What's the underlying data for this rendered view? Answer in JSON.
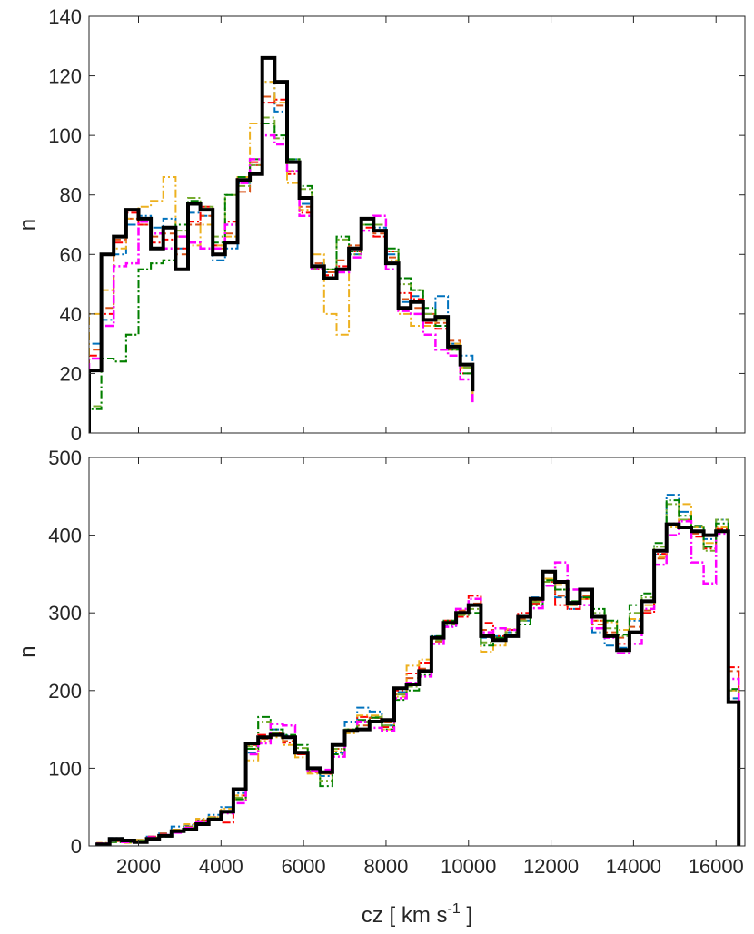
{
  "chart_data": [
    {
      "type": "line",
      "subtype": "stairs-histogram",
      "title": "",
      "xlabel": "",
      "ylabel": "n",
      "xlim": [
        800,
        16700
      ],
      "ylim": [
        0,
        140
      ],
      "xticks": [
        2000,
        4000,
        6000,
        8000,
        10000,
        12000,
        14000,
        16000
      ],
      "xtick_labels_shown": false,
      "yticks": [
        0,
        20,
        40,
        60,
        80,
        100,
        120,
        140
      ],
      "grid": false,
      "legend": "none",
      "bin_edges": [
        800,
        1100,
        1400,
        1700,
        2000,
        2300,
        2600,
        2900,
        3200,
        3500,
        3800,
        4100,
        4400,
        4700,
        5000,
        5300,
        5600,
        5900,
        6200,
        6500,
        6800,
        7100,
        7400,
        7700,
        8000,
        8300,
        8600,
        8900,
        9200,
        9500,
        9800,
        10100
      ],
      "series": [
        {
          "color": "#000000",
          "style": "solid",
          "width": 4,
          "values": [
            21,
            60,
            66,
            75,
            72,
            62,
            69,
            55,
            77,
            75,
            60,
            64,
            85,
            87,
            126,
            118,
            91,
            79,
            56,
            52,
            55,
            62,
            72,
            68,
            57,
            42,
            44,
            38,
            39,
            29,
            23,
            14
          ]
        },
        {
          "color": "#0072BD",
          "style": "dashdot",
          "width": 2,
          "values": [
            30,
            38,
            60,
            70,
            73,
            69,
            72,
            62,
            74,
            73,
            58,
            62,
            84,
            90,
            118,
            108,
            92,
            77,
            57,
            54,
            55,
            60,
            70,
            69,
            60,
            44,
            46,
            40,
            46,
            30,
            26,
            16
          ]
        },
        {
          "color": "#D95319",
          "style": "dashed",
          "width": 2,
          "values": [
            28,
            42,
            65,
            72,
            70,
            66,
            67,
            60,
            70,
            73,
            62,
            67,
            81,
            90,
            113,
            110,
            88,
            76,
            57,
            54,
            58,
            63,
            70,
            67,
            59,
            45,
            42,
            40,
            37,
            31,
            22,
            12
          ]
        },
        {
          "color": "#FF0000",
          "style": "dashdot",
          "width": 2,
          "values": [
            26,
            40,
            64,
            74,
            70,
            64,
            65,
            62,
            71,
            76,
            63,
            71,
            86,
            91,
            111,
            112,
            87,
            74,
            55,
            53,
            56,
            61,
            69,
            66,
            61,
            47,
            45,
            37,
            35,
            28,
            20,
            11
          ]
        },
        {
          "color": "#EDB120",
          "style": "dashdot",
          "width": 2,
          "values": [
            40,
            48,
            62,
            72,
            76,
            78,
            86,
            66,
            63,
            70,
            63,
            66,
            86,
            104,
            118,
            111,
            84,
            75,
            60,
            40,
            33,
            62,
            70,
            68,
            58,
            40,
            36,
            36,
            38,
            30,
            22,
            13
          ]
        },
        {
          "color": "#77AC30",
          "style": "dashdot",
          "width": 2,
          "values": [
            9,
            25,
            24,
            33,
            55,
            57,
            58,
            68,
            79,
            76,
            66,
            80,
            83,
            90,
            106,
            99,
            92,
            82,
            55,
            55,
            65,
            60,
            70,
            70,
            61,
            50,
            48,
            40,
            38,
            28,
            22,
            16
          ]
        },
        {
          "color": "#007F00",
          "style": "dashdot",
          "width": 2,
          "values": [
            8,
            25,
            24,
            33,
            55,
            57,
            58,
            70,
            78,
            75,
            64,
            80,
            86,
            92,
            104,
            100,
            92,
            83,
            56,
            55,
            66,
            61,
            70,
            68,
            62,
            52,
            48,
            42,
            36,
            28,
            20,
            14
          ]
        },
        {
          "color": "#FF00FF",
          "style": "dashdot",
          "width": 2.5,
          "values": [
            25,
            36,
            56,
            57,
            71,
            67,
            62,
            66,
            64,
            62,
            62,
            70,
            84,
            92,
            100,
            97,
            88,
            73,
            55,
            52,
            54,
            59,
            68,
            73,
            55,
            41,
            40,
            33,
            28,
            26,
            18,
            10
          ]
        }
      ]
    },
    {
      "type": "line",
      "subtype": "stairs-histogram",
      "title": "",
      "xlabel": "cz   [ km s-1 ]",
      "ylabel": "n",
      "xlim": [
        800,
        16700
      ],
      "ylim": [
        0,
        500
      ],
      "xticks": [
        2000,
        4000,
        6000,
        8000,
        10000,
        12000,
        14000,
        16000
      ],
      "yticks": [
        0,
        100,
        200,
        300,
        400,
        500
      ],
      "grid": false,
      "legend": "none",
      "bin_edges": [
        1000,
        1300,
        1600,
        1900,
        2200,
        2500,
        2800,
        3100,
        3400,
        3700,
        4000,
        4300,
        4600,
        4900,
        5200,
        5500,
        5800,
        6100,
        6400,
        6700,
        7000,
        7300,
        7600,
        7900,
        8200,
        8500,
        8800,
        9100,
        9400,
        9700,
        10000,
        10300,
        10600,
        10900,
        11200,
        11500,
        11800,
        12100,
        12400,
        12700,
        13000,
        13300,
        13600,
        13900,
        14200,
        14500,
        14800,
        15100,
        15400,
        15700,
        16000,
        16300,
        16550
      ],
      "series": [
        {
          "color": "#000000",
          "style": "solid",
          "width": 4,
          "values": [
            2,
            9,
            7,
            5,
            9,
            13,
            19,
            21,
            28,
            34,
            44,
            73,
            132,
            140,
            143,
            140,
            120,
            100,
            95,
            130,
            148,
            150,
            160,
            162,
            203,
            208,
            225,
            268,
            287,
            300,
            310,
            270,
            265,
            270,
            295,
            318,
            353,
            340,
            313,
            330,
            295,
            270,
            252,
            275,
            315,
            380,
            414,
            410,
            405,
            400,
            405,
            185
          ]
        },
        {
          "color": "#0072BD",
          "style": "dashdot",
          "width": 2,
          "values": [
            3,
            10,
            8,
            8,
            12,
            16,
            25,
            27,
            34,
            40,
            50,
            68,
            120,
            140,
            150,
            142,
            121,
            99,
            90,
            120,
            160,
            178,
            173,
            155,
            198,
            210,
            225,
            270,
            283,
            300,
            310,
            268,
            270,
            275,
            290,
            320,
            335,
            320,
            305,
            320,
            275,
            258,
            255,
            290,
            315,
            375,
            452,
            430,
            410,
            395,
            420,
            190
          ]
        },
        {
          "color": "#D95319",
          "style": "dashed",
          "width": 2,
          "values": [
            2,
            6,
            5,
            6,
            10,
            16,
            20,
            25,
            33,
            37,
            43,
            60,
            125,
            138,
            145,
            135,
            118,
            95,
            93,
            125,
            150,
            155,
            165,
            160,
            195,
            216,
            228,
            263,
            289,
            303,
            312,
            278,
            268,
            272,
            292,
            315,
            352,
            322,
            310,
            322,
            285,
            275,
            268,
            282,
            303,
            370,
            414,
            420,
            402,
            399,
            408,
            225
          ]
        },
        {
          "color": "#FF0000",
          "style": "dashdot",
          "width": 2,
          "values": [
            2,
            7,
            6,
            6,
            12,
            14,
            19,
            22,
            32,
            33,
            30,
            65,
            130,
            143,
            145,
            133,
            118,
            98,
            93,
            130,
            148,
            166,
            165,
            153,
            200,
            222,
            236,
            268,
            290,
            295,
            322,
            287,
            270,
            278,
            300,
            312,
            340,
            310,
            305,
            318,
            290,
            270,
            260,
            275,
            300,
            376,
            415,
            410,
            398,
            383,
            408,
            230
          ]
        },
        {
          "color": "#EDB120",
          "style": "dashdot",
          "width": 2,
          "values": [
            4,
            5,
            4,
            8,
            11,
            14,
            21,
            28,
            35,
            37,
            48,
            65,
            110,
            135,
            140,
            130,
            114,
            93,
            93,
            122,
            145,
            168,
            168,
            150,
            192,
            232,
            240,
            266,
            287,
            298,
            310,
            250,
            258,
            279,
            294,
            315,
            344,
            336,
            312,
            318,
            290,
            288,
            278,
            292,
            310,
            372,
            410,
            440,
            410,
            390,
            410,
            200
          ]
        },
        {
          "color": "#77AC30",
          "style": "dashdot",
          "width": 2,
          "values": [
            2,
            6,
            6,
            7,
            10,
            14,
            20,
            24,
            30,
            36,
            45,
            62,
            128,
            160,
            146,
            140,
            126,
            96,
            84,
            125,
            150,
            160,
            166,
            155,
            195,
            205,
            225,
            265,
            285,
            297,
            305,
            262,
            265,
            275,
            290,
            314,
            340,
            330,
            310,
            320,
            300,
            280,
            270,
            300,
            320,
            385,
            440,
            420,
            410,
            380,
            420,
            200
          ]
        },
        {
          "color": "#007F00",
          "style": "dashdot",
          "width": 2,
          "values": [
            2,
            5,
            5,
            6,
            9,
            12,
            19,
            22,
            29,
            35,
            43,
            60,
            125,
            166,
            150,
            143,
            130,
            97,
            77,
            118,
            150,
            162,
            165,
            150,
            188,
            200,
            220,
            270,
            290,
            300,
            300,
            258,
            268,
            270,
            285,
            310,
            342,
            330,
            315,
            320,
            305,
            290,
            272,
            310,
            325,
            390,
            445,
            425,
            412,
            385,
            415,
            202
          ]
        },
        {
          "color": "#FF00FF",
          "style": "dashdot",
          "width": 2.5,
          "values": [
            3,
            7,
            5,
            5,
            11,
            14,
            17,
            23,
            30,
            33,
            42,
            55,
            118,
            132,
            157,
            155,
            120,
            96,
            98,
            115,
            148,
            160,
            152,
            148,
            190,
            210,
            218,
            260,
            282,
            305,
            318,
            275,
            280,
            278,
            295,
            306,
            335,
            365,
            330,
            310,
            280,
            268,
            248,
            260,
            305,
            362,
            400,
            418,
            365,
            338,
            402,
            215
          ]
        }
      ]
    }
  ]
}
